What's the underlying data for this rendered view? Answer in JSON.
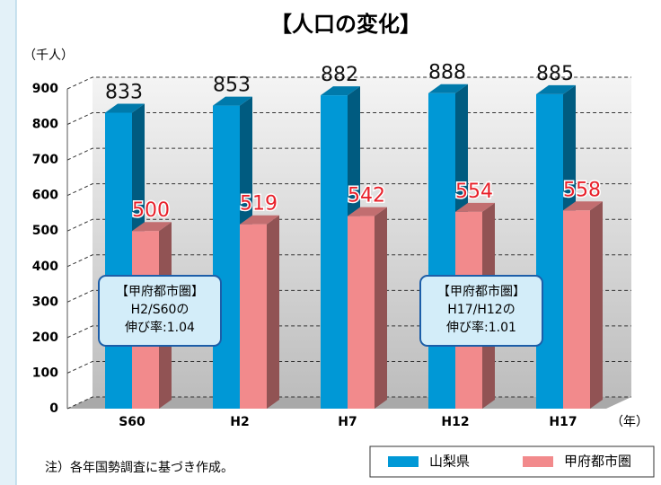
{
  "chart_data": {
    "type": "bar3d",
    "title": "【人口の変化】",
    "y_axis_label": "（千人）",
    "x_axis_label": "（年）",
    "categories": [
      "S60",
      "H2",
      "H7",
      "H12",
      "H17"
    ],
    "series": [
      {
        "name": "山梨県",
        "color": "#0098d6",
        "values": [
          833,
          853,
          882,
          888,
          885
        ]
      },
      {
        "name": "甲府都市圏",
        "color": "#f28a8c",
        "values": [
          500,
          519,
          542,
          554,
          558
        ]
      }
    ],
    "ylim": [
      0,
      900
    ],
    "yticks": [
      0,
      100,
      200,
      300,
      400,
      500,
      600,
      700,
      800,
      900
    ],
    "grid": true,
    "annotations": [
      {
        "lines": [
          "【甲府都市圏】",
          "H2/S60の",
          "伸び率:1.04"
        ]
      },
      {
        "lines": [
          "【甲府都市圏】",
          "H17/H12の",
          "伸び率:1.01"
        ]
      }
    ],
    "note": "注）各年国勢調査に基づき作成。"
  }
}
